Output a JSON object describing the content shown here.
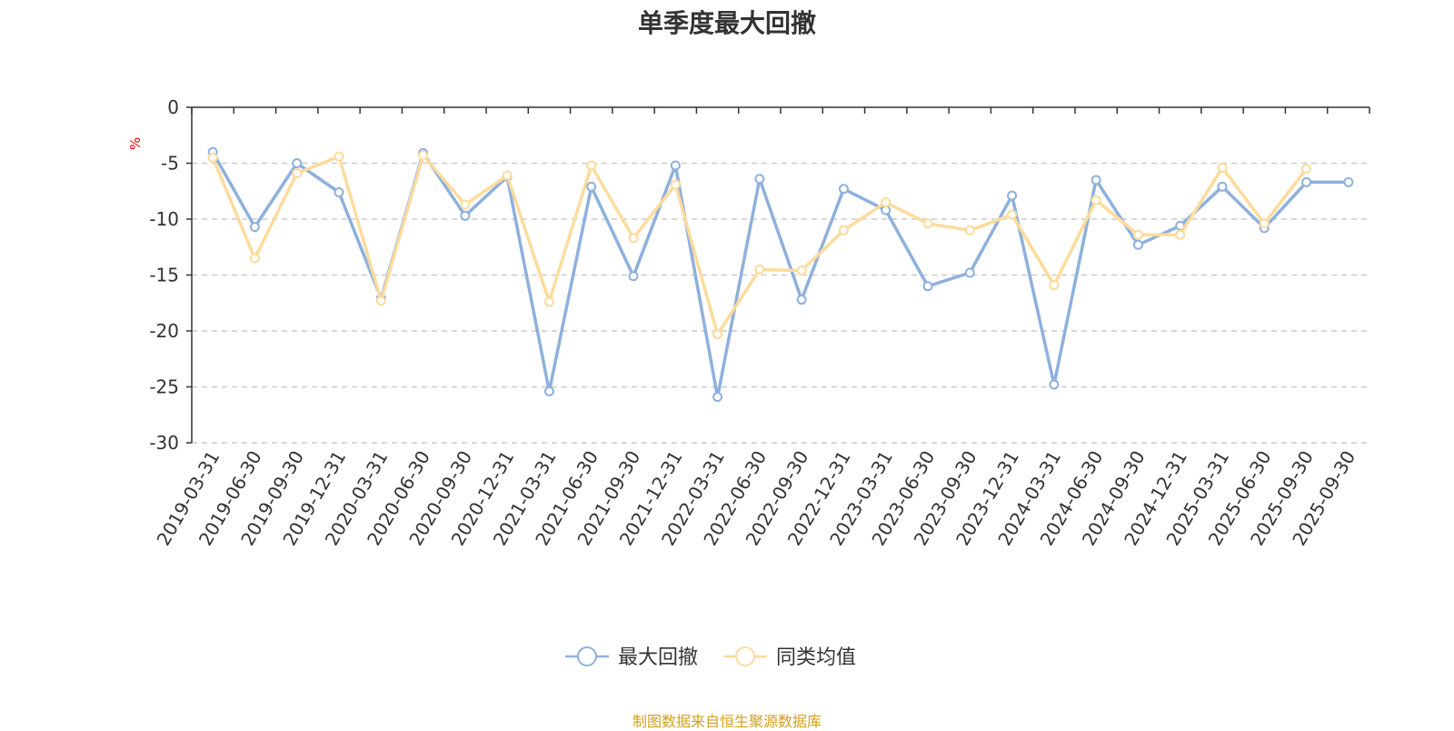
{
  "title": "单季度最大回撤",
  "source": "制图数据来自恒生聚源数据库",
  "chart_data": {
    "type": "line",
    "title": "单季度最大回撤",
    "ylabel": "%",
    "ylim": [
      -30,
      0
    ],
    "yticks": [
      0,
      -5,
      -10,
      -15,
      -20,
      -25,
      -30
    ],
    "grid": true,
    "legend_position": "bottom-center",
    "categories": [
      "2019-03-31",
      "2019-06-30",
      "2019-09-30",
      "2019-12-31",
      "2020-03-31",
      "2020-06-30",
      "2020-09-30",
      "2020-12-31",
      "2021-03-31",
      "2021-06-30",
      "2021-09-30",
      "2021-12-31",
      "2022-03-31",
      "2022-06-30",
      "2022-09-30",
      "2022-12-31",
      "2023-03-31",
      "2023-06-30",
      "2023-09-30",
      "2023-12-31",
      "2024-03-31",
      "2024-06-30",
      "2024-09-30",
      "2024-12-31",
      "2025-03-31",
      "2025-06-30",
      "2025-09-30",
      "2025-09-30"
    ],
    "series": [
      {
        "name": "最大回撤",
        "color": "#8eb0dc",
        "values": [
          -4.0,
          -10.7,
          -5.0,
          -7.6,
          -17.1,
          -4.1,
          -9.7,
          -6.2,
          -25.4,
          -7.1,
          -15.1,
          -5.2,
          -25.9,
          -6.4,
          -17.2,
          -7.3,
          -9.2,
          -16.0,
          -14.8,
          -7.9,
          -24.8,
          -6.5,
          -12.3,
          -10.6,
          -7.1,
          -10.8,
          -6.7,
          -6.7
        ]
      },
      {
        "name": "同类均值",
        "color": "#fddb9c",
        "values": [
          -4.5,
          -13.5,
          -5.9,
          -4.4,
          -17.3,
          -4.3,
          -8.7,
          -6.1,
          -17.4,
          -5.2,
          -11.7,
          -6.9,
          -20.3,
          -14.5,
          -14.6,
          -11.0,
          -8.5,
          -10.4,
          -11.0,
          -9.6,
          -15.9,
          -8.3,
          -11.4,
          -11.4,
          -5.4,
          -10.4,
          -5.5,
          null
        ]
      }
    ]
  }
}
